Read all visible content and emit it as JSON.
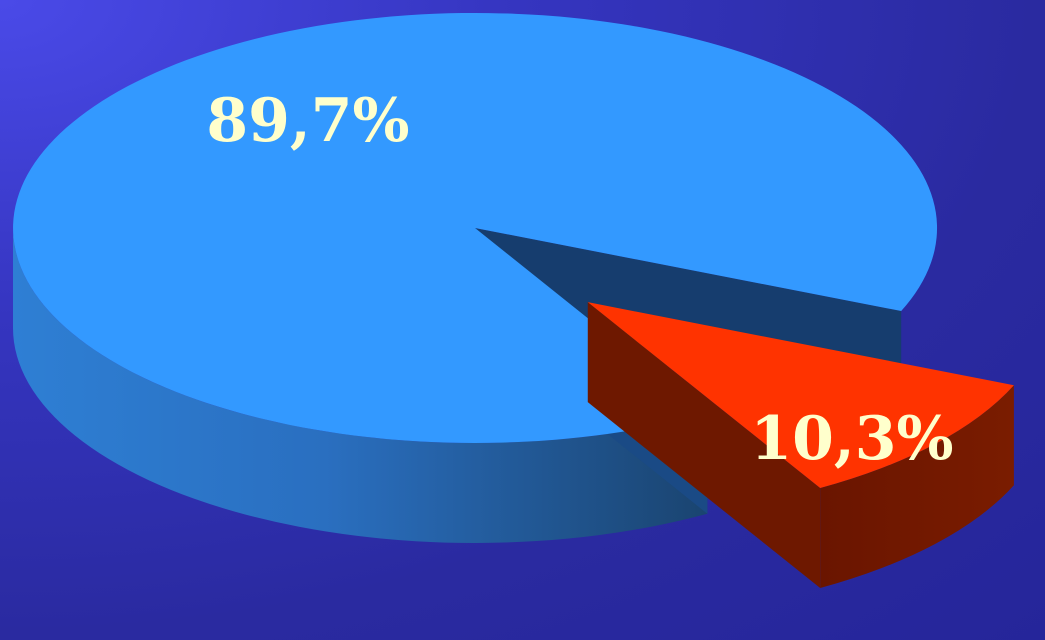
{
  "chart_data": {
    "type": "pie",
    "three_d": true,
    "exploded_slice": 1,
    "slices": [
      {
        "label": "89,7%",
        "value": 89.7,
        "color": "#3399ff"
      },
      {
        "label": "10,3%",
        "value": 10.3,
        "color": "#ff3300"
      }
    ]
  },
  "colors": {
    "background": "#2f2fb0",
    "slice_main_top": "#3399ff",
    "slice_main_side": "#1f5f9e",
    "slice_main_inner": "#163d6e",
    "slice_small_top": "#ff3300",
    "slice_small_side": "#6e1800",
    "label_text": "#ffffcc"
  }
}
